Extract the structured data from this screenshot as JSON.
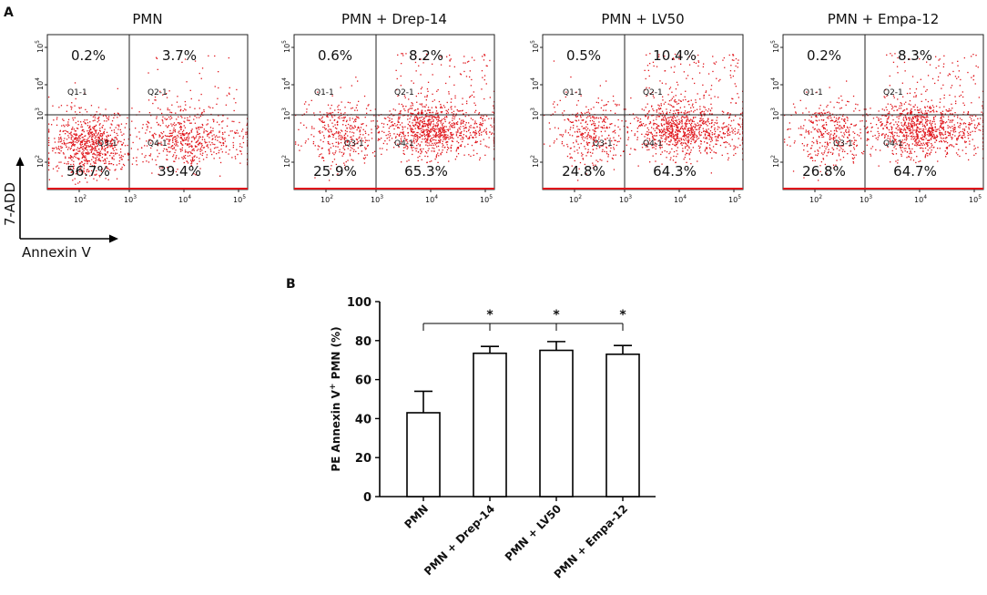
{
  "panel_a": {
    "label": "A",
    "y_axis_label": "7-ADD",
    "x_axis_label": "Annexin V",
    "plots": [
      {
        "title": "PMN",
        "q1": "0.2%",
        "q2": "3.7%",
        "q3": "56.7%",
        "q4": "39.4%",
        "gates": [
          "Q1-1",
          "Q2-1",
          "Q3-1",
          "Q4-1"
        ],
        "q_fractions": [
          0.002,
          0.037,
          0.567,
          0.394
        ]
      },
      {
        "title": "PMN + Drep-14",
        "q1": "0.6%",
        "q2": "8.2%",
        "q3": "25.9%",
        "q4": "65.3%",
        "gates": [
          "Q1-1",
          "Q2-1",
          "Q3-1",
          "Q4-1"
        ],
        "q_fractions": [
          0.006,
          0.082,
          0.259,
          0.653
        ]
      },
      {
        "title": "PMN + LV50",
        "q1": "0.5%",
        "q2": "10.4%",
        "q3": "24.8%",
        "q4": "64.3%",
        "gates": [
          "Q1-1",
          "Q2-1",
          "Q3-1",
          "Q4-1"
        ],
        "q_fractions": [
          0.005,
          0.104,
          0.248,
          0.643
        ]
      },
      {
        "title": "PMN + Empa-12",
        "q1": "0.2%",
        "q2": "8.3%",
        "q3": "26.8%",
        "q4": "64.7%",
        "gates": [
          "Q1-1",
          "Q2-1",
          "Q3-1",
          "Q4-1"
        ],
        "q_fractions": [
          0.002,
          0.083,
          0.268,
          0.647
        ]
      }
    ],
    "axis_ticks": {
      "x": [
        "10",
        "10",
        "10",
        "10"
      ],
      "x_exp": [
        "2",
        "3",
        "4",
        "5"
      ],
      "y": [
        "10",
        "10",
        "10",
        "10"
      ],
      "y_exp": [
        "2",
        "3",
        "4",
        "5"
      ]
    },
    "dot_color": "#e0151b"
  },
  "chart_data": {
    "type": "bar",
    "panel_label": "B",
    "title": "",
    "xlabel": "",
    "ylabel_prefix": "PE Annexin V",
    "ylabel_sup": "+",
    "ylabel_suffix": " PMN (%)",
    "categories": [
      "PMN",
      "PMN + Drep-14",
      "PMN + LV50",
      "PMN + Empa-12"
    ],
    "values": [
      43,
      73.5,
      75,
      73
    ],
    "errors": [
      11,
      3.5,
      4.5,
      4.5
    ],
    "ylim": [
      0,
      100
    ],
    "yticks": [
      0,
      20,
      40,
      60,
      80,
      100
    ],
    "significance_marker": "*",
    "significance_vs": "PMN",
    "significant": [
      false,
      true,
      true,
      true
    ]
  }
}
